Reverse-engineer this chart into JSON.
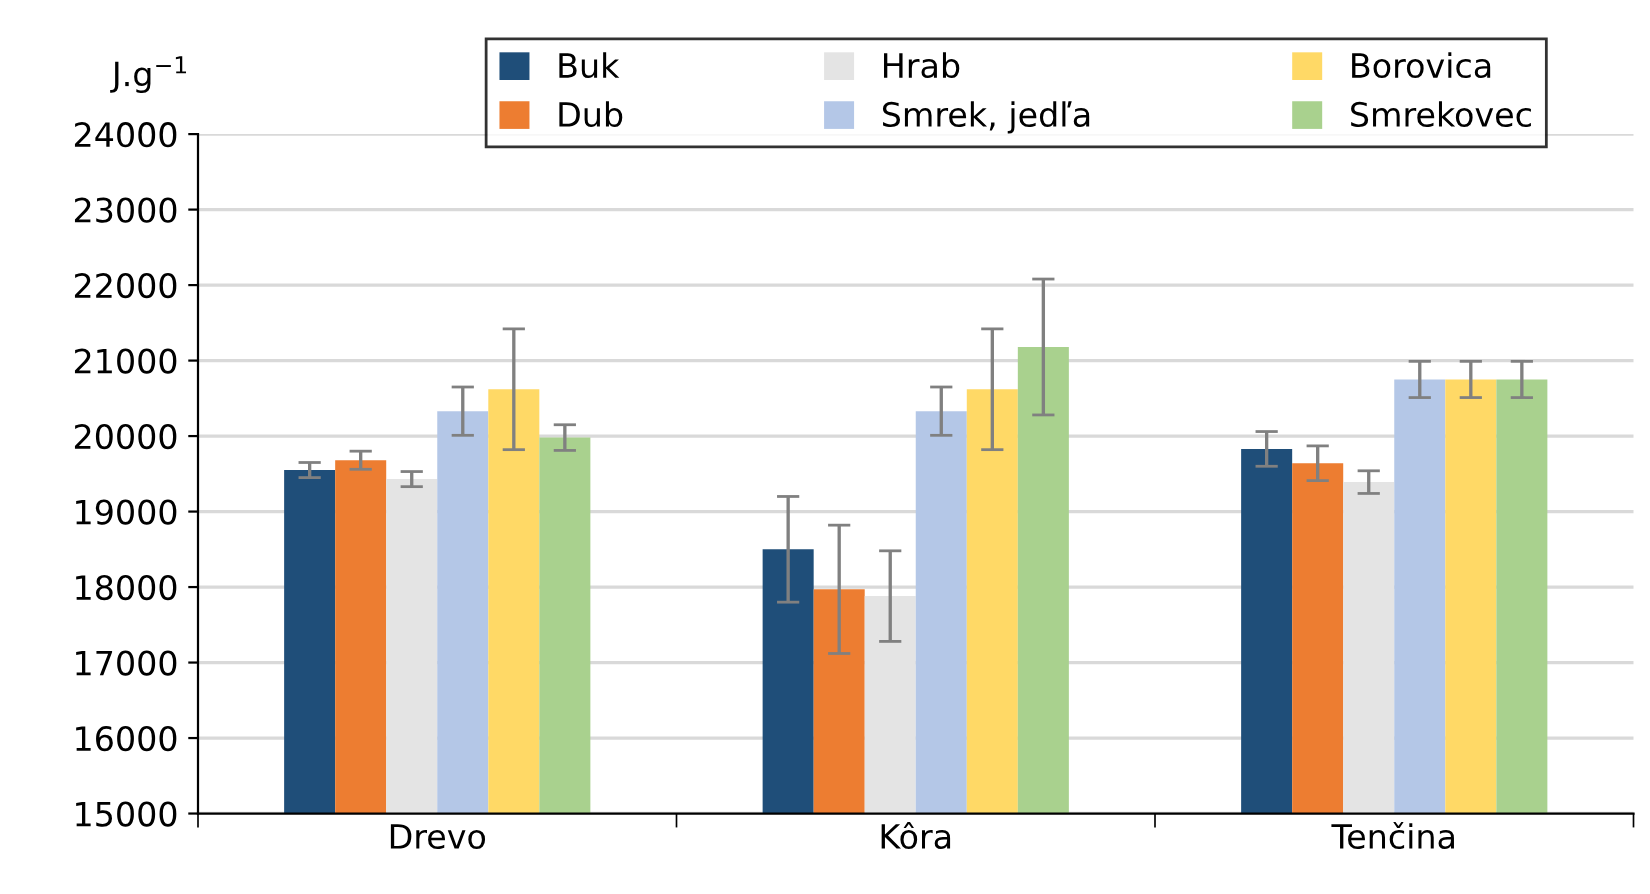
{
  "chart_data": {
    "type": "bar",
    "ylabel": "J.g$^{−1}$",
    "categories": [
      "Drevo",
      "Kôra",
      "Tenčina"
    ],
    "series": [
      {
        "name": "Buk",
        "color": "#1f4e79",
        "values": [
          19550,
          18500,
          19830
        ],
        "errors": [
          100,
          700,
          230
        ]
      },
      {
        "name": "Dub",
        "color": "#ed7d31",
        "values": [
          19680,
          17970,
          19640
        ],
        "errors": [
          120,
          850,
          230
        ]
      },
      {
        "name": "Hrab",
        "color": "#e4e4e4",
        "values": [
          19430,
          17880,
          19390
        ],
        "errors": [
          100,
          600,
          150
        ]
      },
      {
        "name": "Smrek, jedľa",
        "color": "#b4c7e7",
        "values": [
          20330,
          20330,
          20750
        ],
        "errors": [
          320,
          320,
          240
        ]
      },
      {
        "name": "Borovica",
        "color": "#ffd966",
        "values": [
          20620,
          20620,
          20750
        ],
        "errors": [
          800,
          800,
          240
        ]
      },
      {
        "name": "Smrekovec",
        "color": "#a9d18e",
        "values": [
          19980,
          21180,
          20750
        ],
        "errors": [
          170,
          900,
          240
        ]
      }
    ],
    "ylim": [
      15000,
      24000
    ],
    "yticks": [
      15000,
      16000,
      17000,
      18000,
      19000,
      20000,
      21000,
      22000,
      23000,
      24000
    ],
    "grid": "y",
    "legend": "top"
  }
}
